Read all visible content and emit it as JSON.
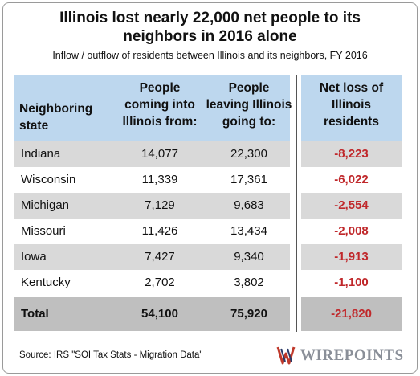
{
  "title_line1": "Illinois lost nearly 22,000 net people to its",
  "title_line2": "neighbors in 2016 alone",
  "subtitle": "Inflow / outflow of residents between Illinois and its neighbors, FY 2016",
  "headers": {
    "state_line1": "Neighboring",
    "state_line2": "state",
    "in_line1": "People",
    "in_line2": "coming into",
    "in_line3": "Illinois from:",
    "out_line1": "People",
    "out_line2": "leaving Illinois",
    "out_line3": "going to:",
    "net_line1": "Net loss of",
    "net_line2": "Illinois",
    "net_line3": "residents"
  },
  "chart_data": {
    "type": "table",
    "columns": [
      "Neighboring state",
      "People coming into Illinois from:",
      "People leaving Illinois going to:",
      "Net loss of Illinois residents"
    ],
    "rows": [
      {
        "state": "Indiana",
        "in": "14,077",
        "out": "22,300",
        "net": "-8,223"
      },
      {
        "state": "Wisconsin",
        "in": "11,339",
        "out": "17,361",
        "net": "-6,022"
      },
      {
        "state": "Michigan",
        "in": "7,129",
        "out": "9,683",
        "net": "-2,554"
      },
      {
        "state": "Missouri",
        "in": "11,426",
        "out": "13,434",
        "net": "-2,008"
      },
      {
        "state": "Iowa",
        "in": "7,427",
        "out": "9,340",
        "net": "-1,913"
      },
      {
        "state": "Kentucky",
        "in": "2,702",
        "out": "3,802",
        "net": "-1,100"
      }
    ],
    "total": {
      "state": "Total",
      "in": "54,100",
      "out": "75,920",
      "net": "-21,820"
    }
  },
  "source": "Source: IRS \"SOI Tax Stats - Migration Data\"",
  "logo_text": "WIREPOINTS",
  "colors": {
    "header_bg": "#bdd7ee",
    "shade": "#d9d9d9",
    "total_bg": "#bfbfbf",
    "negative": "#c0282b"
  }
}
